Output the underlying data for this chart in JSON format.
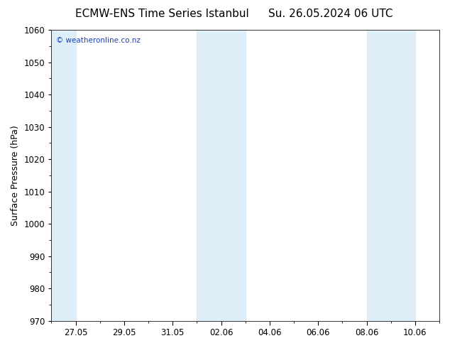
{
  "title_left": "ECMW-ENS Time Series Istanbul",
  "title_right": "Su. 26.05.2024 06 UTC",
  "ylabel": "Surface Pressure (hPa)",
  "ylim": [
    970,
    1060
  ],
  "yticks": [
    970,
    980,
    990,
    1000,
    1010,
    1020,
    1030,
    1040,
    1050,
    1060
  ],
  "xtick_labels": [
    "27.05",
    "29.05",
    "31.05",
    "02.06",
    "04.06",
    "06.06",
    "08.06",
    "10.06"
  ],
  "plot_bg_color": "#ffffff",
  "outer_bg_color": "#ffffff",
  "stripe_color": "#ddeef8",
  "watermark_text": "© weatheronline.co.nz",
  "watermark_color": "#1a3fbf",
  "title_fontsize": 11,
  "tick_fontsize": 8.5,
  "ylabel_fontsize": 9,
  "num_days": 16
}
